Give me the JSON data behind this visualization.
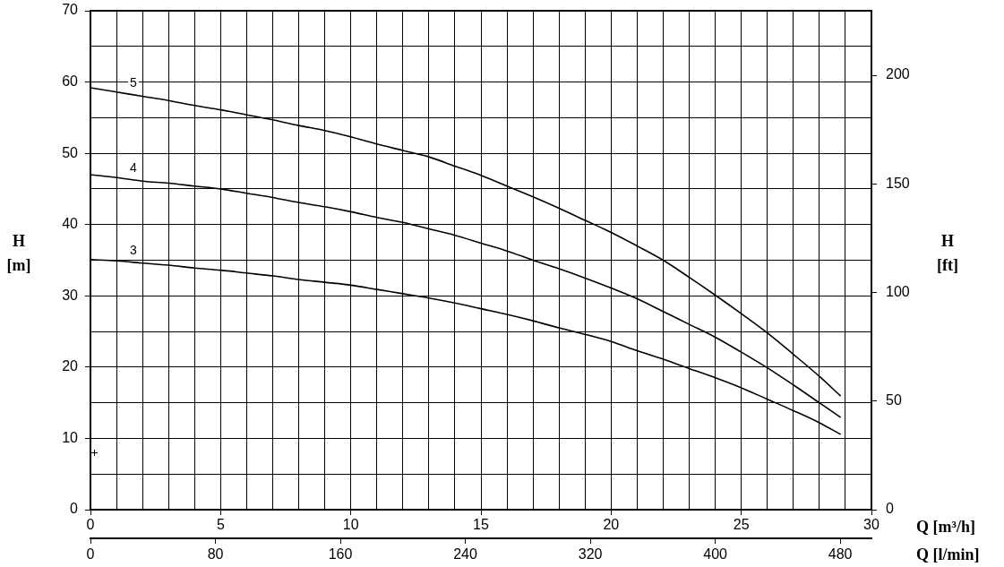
{
  "chart_data": {
    "type": "line",
    "xlabel": "Q [m³/h]",
    "x2label": "Q [l/min]",
    "ylabel": "H [m]",
    "y2label": "H [ft]",
    "x": [
      0,
      1,
      2,
      3,
      4,
      5,
      6,
      7,
      8,
      9,
      10,
      11,
      12,
      13,
      14,
      15,
      16,
      17,
      18,
      19,
      20,
      21,
      22,
      23,
      24,
      25,
      26,
      27,
      28,
      28.8
    ],
    "series": [
      {
        "name": "5",
        "color": "#000000",
        "values": [
          59.2,
          58.6,
          58.0,
          57.4,
          56.7,
          56.1,
          55.4,
          54.7,
          53.9,
          53.2,
          52.3,
          51.3,
          50.4,
          49.5,
          48.2,
          46.9,
          45.4,
          43.9,
          42.3,
          40.6,
          38.9,
          37.0,
          35.0,
          32.6,
          30.1,
          27.5,
          24.8,
          21.8,
          18.7,
          16.0
        ]
      },
      {
        "name": "4",
        "color": "#000000",
        "values": [
          47.0,
          46.6,
          46.1,
          45.8,
          45.4,
          45.0,
          44.4,
          43.8,
          43.1,
          42.5,
          41.8,
          41.0,
          40.3,
          39.4,
          38.5,
          37.4,
          36.3,
          35.0,
          33.8,
          32.5,
          31.1,
          29.6,
          27.8,
          26.0,
          24.2,
          22.1,
          19.9,
          17.5,
          15.0,
          13.0
        ]
      },
      {
        "name": "3",
        "color": "#000000",
        "values": [
          35.1,
          34.9,
          34.6,
          34.3,
          33.9,
          33.6,
          33.2,
          32.8,
          32.3,
          31.9,
          31.5,
          30.9,
          30.3,
          29.7,
          29.0,
          28.2,
          27.4,
          26.5,
          25.5,
          24.6,
          23.6,
          22.3,
          21.1,
          19.8,
          18.5,
          17.1,
          15.5,
          13.9,
          12.2,
          10.6
        ]
      }
    ],
    "xlim": [
      0,
      30
    ],
    "xticks": [
      0,
      {
        "value": 1,
        "label": null
      },
      {
        "value": 2,
        "label": null
      },
      {
        "value": 3,
        "label": null
      },
      {
        "value": 4,
        "label": null
      },
      5,
      {
        "value": 6,
        "label": null
      },
      {
        "value": 7,
        "label": null
      },
      {
        "value": 8,
        "label": null
      },
      {
        "value": 9,
        "label": null
      },
      10,
      {
        "value": 11,
        "label": null
      },
      {
        "value": 12,
        "label": null
      },
      {
        "value": 13,
        "label": null
      },
      {
        "value": 14,
        "label": null
      },
      15,
      {
        "value": 16,
        "label": null
      },
      {
        "value": 17,
        "label": null
      },
      {
        "value": 18,
        "label": null
      },
      {
        "value": 19,
        "label": null
      },
      20,
      {
        "value": 21,
        "label": null
      },
      {
        "value": 22,
        "label": null
      },
      {
        "value": 23,
        "label": null
      },
      {
        "value": 24,
        "label": null
      },
      25,
      {
        "value": 26,
        "label": null
      },
      {
        "value": 27,
        "label": null
      },
      {
        "value": 28,
        "label": null
      },
      {
        "value": 29,
        "label": null
      },
      30
    ],
    "ylim": [
      0,
      70
    ],
    "yticks": [
      0,
      {
        "value": 5,
        "label": null
      },
      10,
      {
        "value": 15,
        "label": null
      },
      20,
      {
        "value": 25,
        "label": null
      },
      30,
      {
        "value": 35,
        "label": null
      },
      40,
      {
        "value": 45,
        "label": null
      },
      50,
      {
        "value": 55,
        "label": null
      },
      60,
      {
        "value": 65,
        "label": null
      },
      70
    ],
    "y2lim": [
      0,
      229.7
    ],
    "y2ticks": [
      0,
      50,
      100,
      150,
      200
    ],
    "x2lim": [
      0,
      500
    ],
    "x2ticks": [
      0,
      80,
      160,
      240,
      320,
      400,
      480
    ],
    "grid": true,
    "line_style": "solid"
  }
}
